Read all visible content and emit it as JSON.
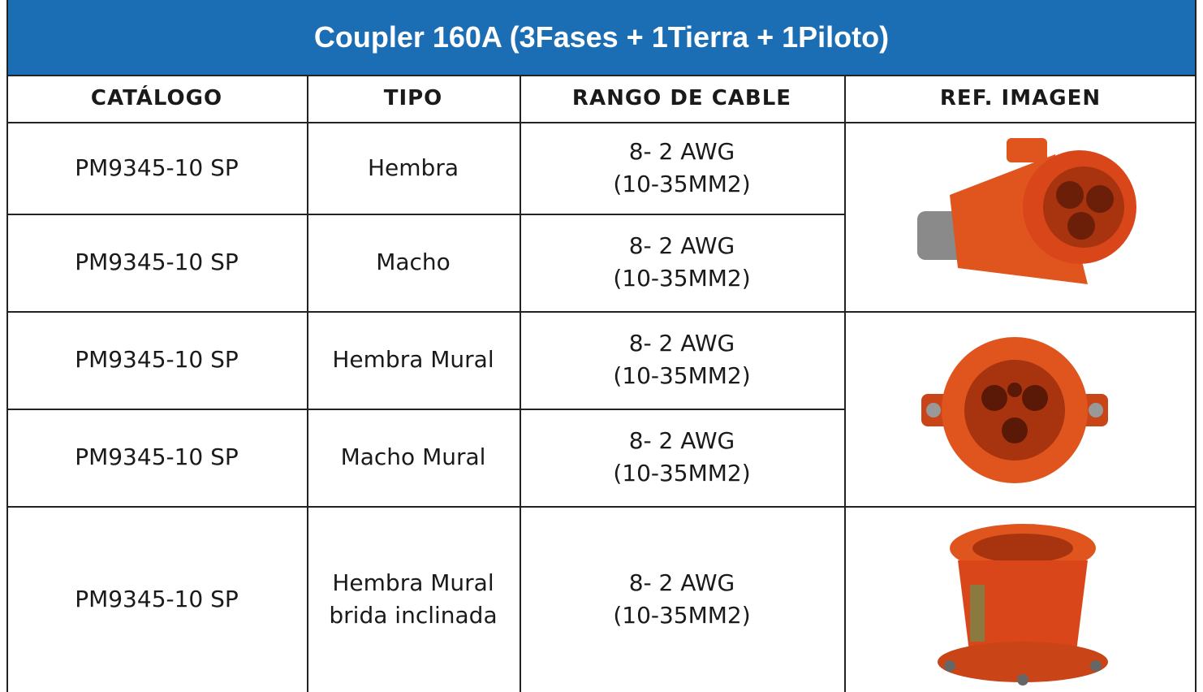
{
  "header": {
    "title": "Coupler 160A (3Fases + 1Tierra + 1Piloto)"
  },
  "table": {
    "columns": [
      "CATÁLOGO",
      "TIPO",
      "RANGO DE CABLE",
      "REF. IMAGEN"
    ],
    "rows": [
      {
        "catalog": "PM9345-10 SP",
        "type": [
          "Hembra"
        ],
        "cable": [
          "8- 2 AWG",
          "(10-35MM2)"
        ]
      },
      {
        "catalog": "PM9345-10 SP",
        "type": [
          "Macho"
        ],
        "cable": [
          "8- 2 AWG",
          "(10-35MM2)"
        ]
      },
      {
        "catalog": "PM9345-10 SP",
        "type": [
          "Hembra Mural"
        ],
        "cable": [
          "8- 2 AWG",
          "(10-35MM2)"
        ]
      },
      {
        "catalog": "PM9345-10 SP",
        "type": [
          "Macho Mural"
        ],
        "cable": [
          "8- 2 AWG",
          "(10-35MM2)"
        ]
      },
      {
        "catalog": "PM9345-10 SP",
        "type": [
          "Hembra Mural",
          "brida inclinada"
        ],
        "cable": [
          "8- 2 AWG",
          "(10-35MM2)"
        ]
      }
    ]
  }
}
